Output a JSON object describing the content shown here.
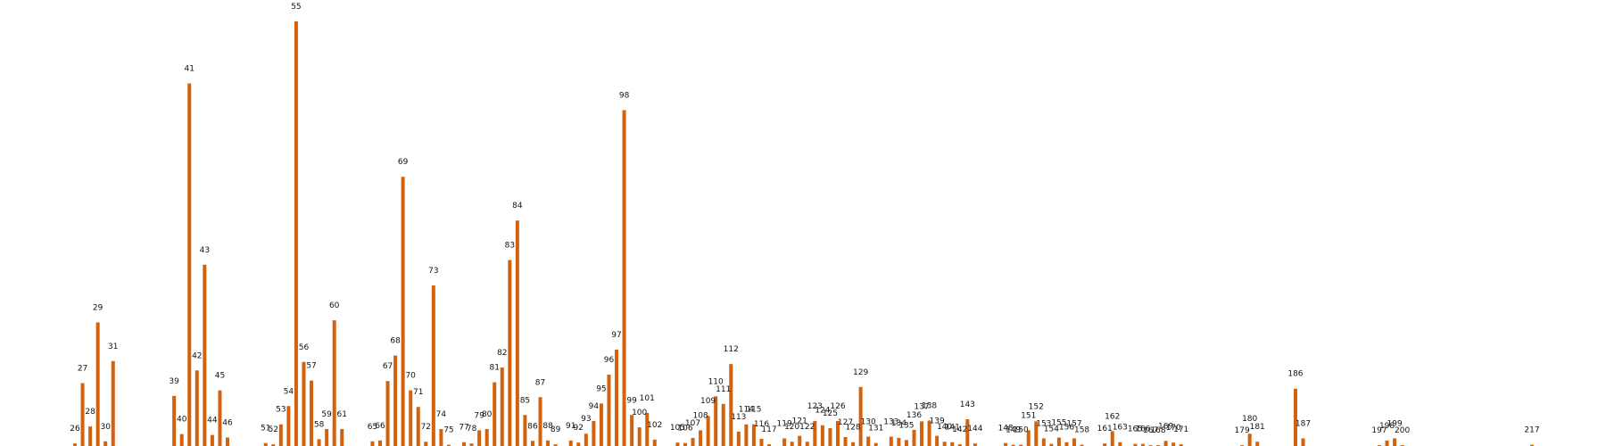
{
  "chart_data": {
    "type": "bar",
    "title": "",
    "xlabel": "",
    "ylabel": "",
    "bar_color": "#d4620c",
    "label_color": "#111111",
    "background": "#ffffff",
    "grid": false,
    "legend": "none",
    "xlim": [
      26,
      217
    ],
    "ylim": [
      0,
      100
    ],
    "bars": [
      {
        "x": 26,
        "value": 0.6,
        "label": "26"
      },
      {
        "x": 27,
        "value": 14.8,
        "label": "27"
      },
      {
        "x": 28,
        "value": 4.6,
        "label": "28"
      },
      {
        "x": 29,
        "value": 29.1,
        "label": "29"
      },
      {
        "x": 30,
        "value": 1.1,
        "label": "30"
      },
      {
        "x": 31,
        "value": 20.0,
        "label": "31"
      },
      {
        "x": 39,
        "value": 11.8,
        "label": "39"
      },
      {
        "x": 40,
        "value": 2.8,
        "label": "40"
      },
      {
        "x": 41,
        "value": 85.4,
        "label": "41"
      },
      {
        "x": 42,
        "value": 17.8,
        "label": "42"
      },
      {
        "x": 43,
        "value": 42.7,
        "label": "43"
      },
      {
        "x": 44,
        "value": 2.6,
        "label": "44"
      },
      {
        "x": 45,
        "value": 13.1,
        "label": "45"
      },
      {
        "x": 46,
        "value": 2.0,
        "label": "46"
      },
      {
        "x": 51,
        "value": 0.7,
        "label": "51"
      },
      {
        "x": 52,
        "value": 0.4,
        "label": "52"
      },
      {
        "x": 53,
        "value": 5.1,
        "label": "53"
      },
      {
        "x": 54,
        "value": 9.4,
        "label": "54"
      },
      {
        "x": 55,
        "value": 100.0,
        "label": "55"
      },
      {
        "x": 56,
        "value": 19.8,
        "label": "56"
      },
      {
        "x": 57,
        "value": 15.4,
        "label": "57"
      },
      {
        "x": 58,
        "value": 1.6,
        "label": "58"
      },
      {
        "x": 59,
        "value": 4.0,
        "label": "59"
      },
      {
        "x": 60,
        "value": 29.6,
        "label": "60"
      },
      {
        "x": 61,
        "value": 4.0,
        "label": "61"
      },
      {
        "x": 65,
        "value": 1.1,
        "label": "65"
      },
      {
        "x": 66,
        "value": 1.3,
        "label": "66"
      },
      {
        "x": 67,
        "value": 15.3,
        "label": "67"
      },
      {
        "x": 68,
        "value": 21.3,
        "label": "68"
      },
      {
        "x": 69,
        "value": 63.4,
        "label": "69"
      },
      {
        "x": 70,
        "value": 13.1,
        "label": "70"
      },
      {
        "x": 71,
        "value": 9.2,
        "label": "71"
      },
      {
        "x": 72,
        "value": 1.0,
        "label": "72"
      },
      {
        "x": 73,
        "value": 37.8,
        "label": "73"
      },
      {
        "x": 74,
        "value": 4.0,
        "label": "74"
      },
      {
        "x": 75,
        "value": 0.3,
        "label": "75"
      },
      {
        "x": 77,
        "value": 0.9,
        "label": "77"
      },
      {
        "x": 78,
        "value": 0.6,
        "label": "78"
      },
      {
        "x": 79,
        "value": 3.7,
        "label": "79"
      },
      {
        "x": 80,
        "value": 4.0,
        "label": "80"
      },
      {
        "x": 81,
        "value": 15.0,
        "label": "81"
      },
      {
        "x": 82,
        "value": 18.5,
        "label": "82"
      },
      {
        "x": 83,
        "value": 43.8,
        "label": "83"
      },
      {
        "x": 84,
        "value": 53.1,
        "label": "84"
      },
      {
        "x": 85,
        "value": 7.3,
        "label": "85"
      },
      {
        "x": 86,
        "value": 1.2,
        "label": "86"
      },
      {
        "x": 87,
        "value": 11.5,
        "label": "87"
      },
      {
        "x": 88,
        "value": 1.3,
        "label": "88"
      },
      {
        "x": 89,
        "value": 0.4,
        "label": "89"
      },
      {
        "x": 91,
        "value": 1.3,
        "label": "91"
      },
      {
        "x": 92,
        "value": 0.8,
        "label": "92"
      },
      {
        "x": 93,
        "value": 2.9,
        "label": "93"
      },
      {
        "x": 94,
        "value": 5.9,
        "label": "94"
      },
      {
        "x": 95,
        "value": 10.0,
        "label": "95"
      },
      {
        "x": 96,
        "value": 16.8,
        "label": "96"
      },
      {
        "x": 97,
        "value": 22.7,
        "label": "97"
      },
      {
        "x": 98,
        "value": 79.1,
        "label": "98"
      },
      {
        "x": 99,
        "value": 7.3,
        "label": "99"
      },
      {
        "x": 100,
        "value": 4.4,
        "label": "100"
      },
      {
        "x": 101,
        "value": 7.8,
        "label": "101"
      },
      {
        "x": 102,
        "value": 1.5,
        "label": "102"
      },
      {
        "x": 105,
        "value": 0.8,
        "label": "105"
      },
      {
        "x": 106,
        "value": 0.7,
        "label": "106"
      },
      {
        "x": 107,
        "value": 1.9,
        "label": "107"
      },
      {
        "x": 108,
        "value": 3.7,
        "label": "108"
      },
      {
        "x": 109,
        "value": 7.1,
        "label": "109"
      },
      {
        "x": 110,
        "value": 11.7,
        "label": "110"
      },
      {
        "x": 111,
        "value": 9.9,
        "label": "111"
      },
      {
        "x": 112,
        "value": 19.3,
        "label": "112"
      },
      {
        "x": 113,
        "value": 3.4,
        "label": "113"
      },
      {
        "x": 114,
        "value": 5.1,
        "label": "114"
      },
      {
        "x": 115,
        "value": 5.1,
        "label": "115"
      },
      {
        "x": 116,
        "value": 1.7,
        "label": "116"
      },
      {
        "x": 117,
        "value": 0.4,
        "label": "117"
      },
      {
        "x": 119,
        "value": 1.8,
        "label": "119"
      },
      {
        "x": 120,
        "value": 1.0,
        "label": "120"
      },
      {
        "x": 121,
        "value": 2.4,
        "label": "121"
      },
      {
        "x": 122,
        "value": 1.0,
        "label": "122"
      },
      {
        "x": 123,
        "value": 5.9,
        "label": "123"
      },
      {
        "x": 124,
        "value": 4.9,
        "label": "124"
      },
      {
        "x": 125,
        "value": 4.2,
        "label": "125"
      },
      {
        "x": 126,
        "value": 5.9,
        "label": "126"
      },
      {
        "x": 127,
        "value": 2.1,
        "label": "127"
      },
      {
        "x": 128,
        "value": 0.9,
        "label": "128"
      },
      {
        "x": 129,
        "value": 13.9,
        "label": "129"
      },
      {
        "x": 130,
        "value": 2.2,
        "label": "130"
      },
      {
        "x": 131,
        "value": 0.7,
        "label": "131"
      },
      {
        "x": 133,
        "value": 2.2,
        "label": "133"
      },
      {
        "x": 134,
        "value": 1.9,
        "label": "134"
      },
      {
        "x": 135,
        "value": 1.4,
        "label": "135"
      },
      {
        "x": 136,
        "value": 3.8,
        "label": "136"
      },
      {
        "x": 137,
        "value": 5.8,
        "label": "137"
      },
      {
        "x": 138,
        "value": 6.0,
        "label": "138"
      },
      {
        "x": 139,
        "value": 2.4,
        "label": "139"
      },
      {
        "x": 140,
        "value": 1.0,
        "label": "140"
      },
      {
        "x": 141,
        "value": 0.9,
        "label": "141"
      },
      {
        "x": 142,
        "value": 0.4,
        "label": "142"
      },
      {
        "x": 143,
        "value": 6.3,
        "label": "143"
      },
      {
        "x": 144,
        "value": 0.6,
        "label": "144"
      },
      {
        "x": 148,
        "value": 0.7,
        "label": "148"
      },
      {
        "x": 149,
        "value": 0.3,
        "label": "149"
      },
      {
        "x": 150,
        "value": 0.3,
        "label": "150"
      },
      {
        "x": 151,
        "value": 3.7,
        "label": "151"
      },
      {
        "x": 152,
        "value": 5.8,
        "label": "152"
      },
      {
        "x": 153,
        "value": 1.8,
        "label": "153"
      },
      {
        "x": 154,
        "value": 0.5,
        "label": "154"
      },
      {
        "x": 155,
        "value": 2.0,
        "label": "155"
      },
      {
        "x": 156,
        "value": 0.9,
        "label": "156"
      },
      {
        "x": 157,
        "value": 1.8,
        "label": "157"
      },
      {
        "x": 158,
        "value": 0.3,
        "label": "158"
      },
      {
        "x": 161,
        "value": 0.6,
        "label": "161"
      },
      {
        "x": 162,
        "value": 3.5,
        "label": "162"
      },
      {
        "x": 163,
        "value": 0.9,
        "label": "163"
      },
      {
        "x": 165,
        "value": 0.5,
        "label": "165"
      },
      {
        "x": 166,
        "value": 0.5,
        "label": "166"
      },
      {
        "x": 167,
        "value": 0.2,
        "label": "167"
      },
      {
        "x": 168,
        "value": 0.2,
        "label": "168"
      },
      {
        "x": 169,
        "value": 1.2,
        "label": "169"
      },
      {
        "x": 170,
        "value": 0.8,
        "label": "170"
      },
      {
        "x": 171,
        "value": 0.4,
        "label": "171"
      },
      {
        "x": 179,
        "value": 0.2,
        "label": "179"
      },
      {
        "x": 180,
        "value": 2.9,
        "label": "180"
      },
      {
        "x": 181,
        "value": 1.0,
        "label": "181"
      },
      {
        "x": 186,
        "value": 13.5,
        "label": "186"
      },
      {
        "x": 187,
        "value": 1.8,
        "label": "187"
      },
      {
        "x": 197,
        "value": 0.2,
        "label": "197"
      },
      {
        "x": 198,
        "value": 1.3,
        "label": "198"
      },
      {
        "x": 199,
        "value": 1.8,
        "label": "199"
      },
      {
        "x": 200,
        "value": 0.2,
        "label": "200"
      },
      {
        "x": 217,
        "value": 0.3,
        "label": "217"
      }
    ]
  }
}
